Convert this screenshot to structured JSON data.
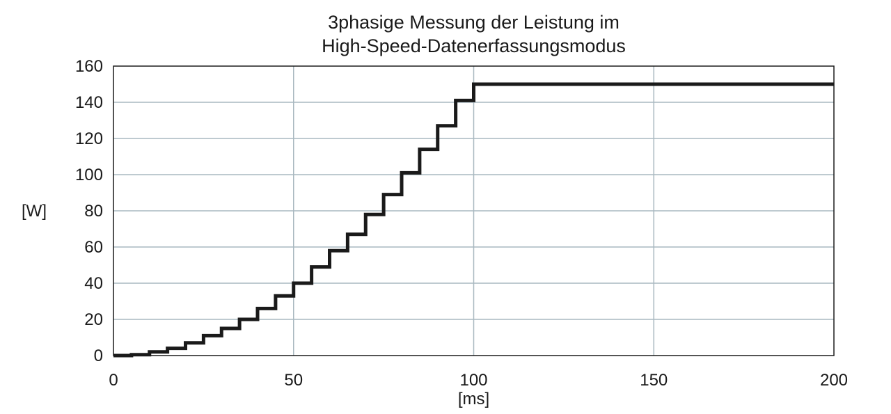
{
  "chart_data": {
    "type": "line",
    "title_lines": [
      "3phasige Messung der Leistung im",
      "High-Speed-Datenerfassungsmodus"
    ],
    "xlabel": "[ms]",
    "ylabel": "[W]",
    "xlim": [
      0,
      200
    ],
    "ylim": [
      0,
      160
    ],
    "x_ticks": [
      0,
      50,
      100,
      150,
      200
    ],
    "y_ticks": [
      0,
      20,
      40,
      60,
      80,
      100,
      120,
      140,
      160
    ],
    "grid": true,
    "line_color": "#1a1a1a",
    "grid_color": "#a9b8c0",
    "series": [
      {
        "step": true,
        "x": [
          0,
          5,
          10,
          15,
          20,
          25,
          30,
          35,
          40,
          45,
          50,
          55,
          60,
          65,
          70,
          75,
          80,
          85,
          90,
          95,
          100,
          200
        ],
        "y": [
          0,
          0.5,
          2,
          4,
          7,
          11,
          15,
          20,
          26,
          33,
          40,
          49,
          58,
          67,
          78,
          89,
          101,
          114,
          127,
          141,
          150,
          150
        ]
      }
    ]
  }
}
